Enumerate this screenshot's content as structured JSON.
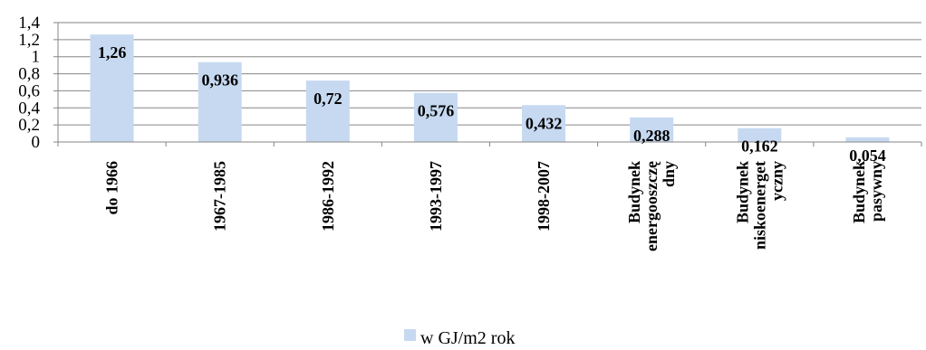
{
  "chart_data": {
    "type": "bar",
    "title": "",
    "xlabel": "",
    "ylabel": "",
    "ylim": [
      0,
      1.4
    ],
    "y_ticks": [
      "0",
      "0,2",
      "0,4",
      "0,6",
      "0,8",
      "1",
      "1,2",
      "1,4"
    ],
    "grid": true,
    "legend_position": "bottom",
    "categories": [
      [
        "do 1966"
      ],
      [
        "1967-1985"
      ],
      [
        "1986-1992"
      ],
      [
        "1993-1997"
      ],
      [
        "1998-2007"
      ],
      [
        "Budynek",
        "energooszczę",
        "dny"
      ],
      [
        "Budynek",
        "niskoenerget",
        "yczny"
      ],
      [
        "Budynek",
        "pasywny"
      ]
    ],
    "series": [
      {
        "name": "w GJ/m2 rok",
        "color": "#c6d9f1",
        "values": [
          1.26,
          0.936,
          0.72,
          0.576,
          0.432,
          0.288,
          0.162,
          0.054
        ],
        "labels": [
          "1,26",
          "0,936",
          "0,72",
          "0,576",
          "0,432",
          "0,288",
          "0,162",
          "0,054"
        ]
      }
    ]
  }
}
